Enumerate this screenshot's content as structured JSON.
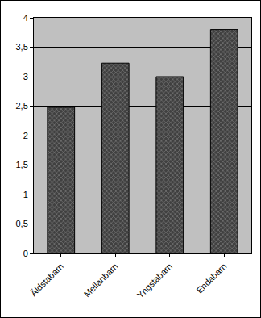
{
  "chart_data": {
    "type": "bar",
    "categories": [
      "Äldstabarn",
      "Mellanbarn",
      "Yngstabarn",
      "Endabarn"
    ],
    "values": [
      2.48,
      3.23,
      3.0,
      3.8
    ],
    "color": "#404040",
    "ylim": [
      0,
      4
    ],
    "yticks": [
      0,
      {
        "value": 0.5,
        "label": "0,5"
      },
      1,
      {
        "value": 1.5,
        "label": "1,5"
      },
      2,
      {
        "value": 2.5,
        "label": "2,5"
      },
      3,
      {
        "value": 3.5,
        "label": "3,5"
      },
      4
    ],
    "grid": true
  }
}
